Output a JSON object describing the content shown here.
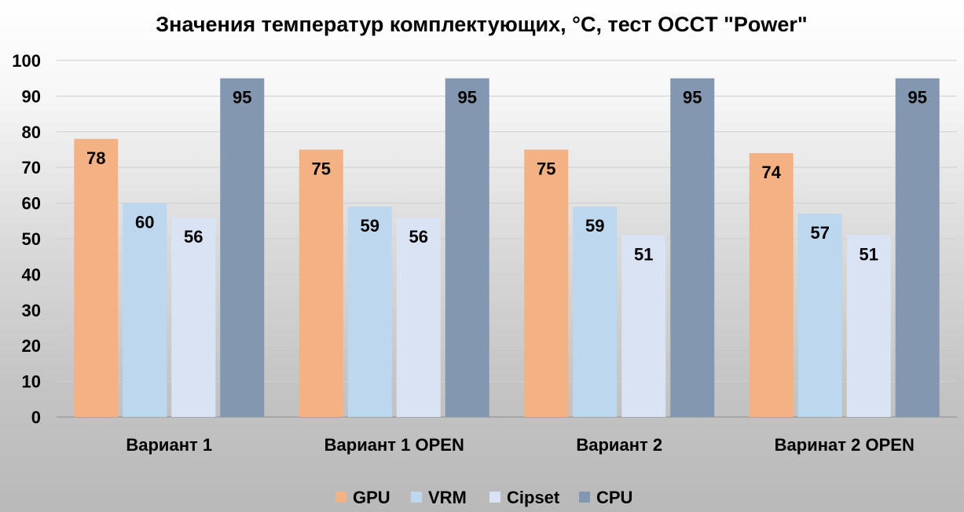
{
  "chart_data": {
    "type": "bar",
    "title": "Значения температур комплектующих, °С, тест OCCT \"Power\"",
    "categories": [
      "Вариант 1",
      "Вариант 1 OPEN",
      "Вариант 2",
      "Варинат 2 OPEN"
    ],
    "series": [
      {
        "name": "GPU",
        "color": "#f4b183",
        "values": [
          78,
          75,
          75,
          74
        ]
      },
      {
        "name": "VRM",
        "color": "#bdd7ee",
        "values": [
          60,
          59,
          59,
          57
        ]
      },
      {
        "name": "Cipset",
        "color": "#dae3f3",
        "values": [
          56,
          56,
          51,
          51
        ]
      },
      {
        "name": "CPU",
        "color": "#8497b0",
        "values": [
          95,
          95,
          95,
          95
        ]
      }
    ],
    "ylim": [
      0,
      100
    ],
    "yticks": [
      0,
      10,
      20,
      30,
      40,
      50,
      60,
      70,
      80,
      90,
      100
    ],
    "grid": true,
    "legend_position": "bottom"
  }
}
